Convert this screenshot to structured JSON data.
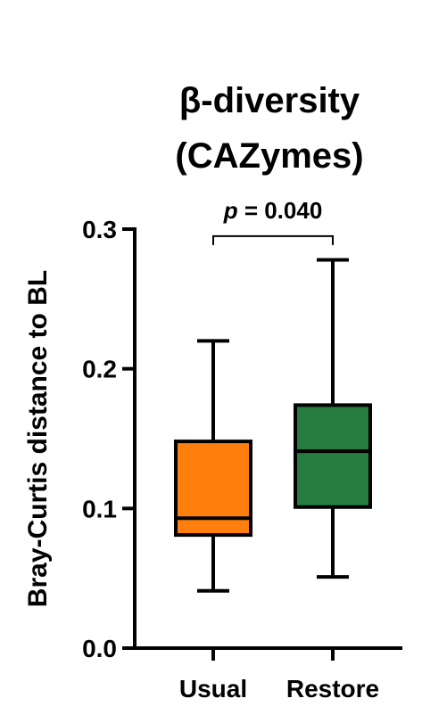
{
  "chart_data": {
    "type": "box",
    "title": [
      "β-diversity",
      "(CAZymes)"
    ],
    "ylabel": "Bray-Curtis distance to BL",
    "xlabel": "",
    "ylim": [
      0,
      0.3
    ],
    "yticks": [
      "0.0",
      "0.1",
      "0.2",
      "0.3"
    ],
    "ytick_values": [
      0,
      0.1,
      0.2,
      0.3
    ],
    "categories": [
      "Usual",
      "Restore"
    ],
    "series": [
      {
        "category": "Usual",
        "min": 0.041,
        "q1": 0.081,
        "median": 0.093,
        "q3": 0.148,
        "max": 0.22,
        "color": "#ff7f0e"
      },
      {
        "category": "Restore",
        "min": 0.051,
        "q1": 0.101,
        "median": 0.141,
        "q3": 0.174,
        "max": 0.278,
        "color": "#267d3f"
      }
    ],
    "annotation": {
      "p_symbol": "p",
      "p_text": " = 0.040",
      "y": 0.295
    },
    "grid": false,
    "legend": "none"
  }
}
